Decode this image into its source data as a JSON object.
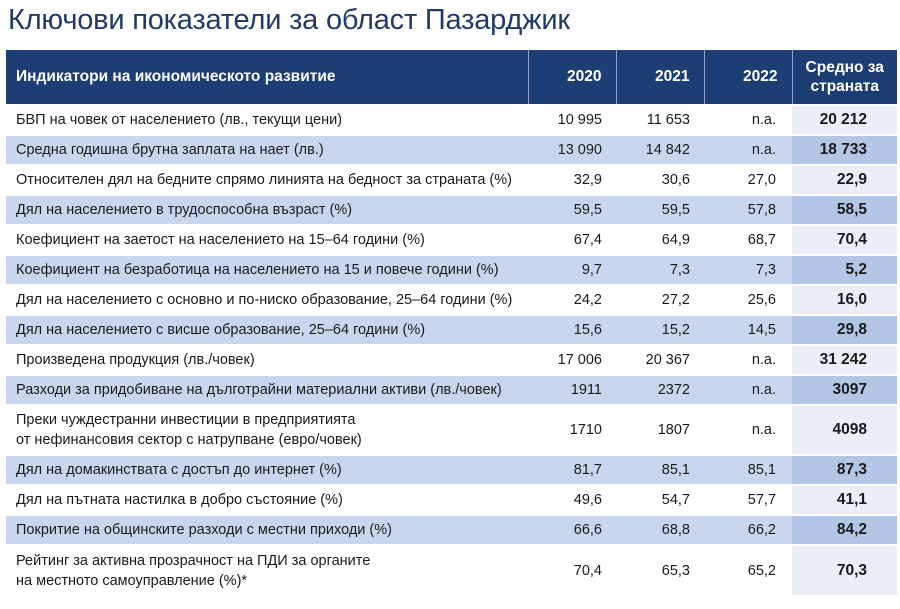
{
  "title": "Ключови показатели за област Пазарджик",
  "table": {
    "headers": [
      "Индикатори на икономическото развитие",
      "2020",
      "2021",
      "2022"
    ],
    "avg_header_line1": "Средно за",
    "avg_header_line2": "страната",
    "rows": [
      {
        "label": [
          "БВП на човек от населението (лв., текущи цени)"
        ],
        "v2020": "10 995",
        "v2021": "11 653",
        "v2022": "n.a.",
        "avg": "20 212"
      },
      {
        "label": [
          "Средна годишна брутна заплата на нает (лв.)"
        ],
        "v2020": "13 090",
        "v2021": "14 842",
        "v2022": "n.a.",
        "avg": "18 733"
      },
      {
        "label": [
          "Относителен дял на бедните спрямо линията на бедност за страната (%)"
        ],
        "v2020": "32,9",
        "v2021": "30,6",
        "v2022": "27,0",
        "avg": "22,9"
      },
      {
        "label": [
          "Дял на населението в трудоспособна възраст (%)"
        ],
        "v2020": "59,5",
        "v2021": "59,5",
        "v2022": "57,8",
        "avg": "58,5"
      },
      {
        "label": [
          "Коефициент на заетост на населението на 15–64 години (%)"
        ],
        "v2020": "67,4",
        "v2021": "64,9",
        "v2022": "68,7",
        "avg": "70,4"
      },
      {
        "label": [
          "Коефициент на безработица на населението на 15 и повече години (%)"
        ],
        "v2020": "9,7",
        "v2021": "7,3",
        "v2022": "7,3",
        "avg": "5,2"
      },
      {
        "label": [
          "Дял на населението с основно и по-ниско образование, 25–64 години (%)"
        ],
        "v2020": "24,2",
        "v2021": "27,2",
        "v2022": "25,6",
        "avg": "16,0"
      },
      {
        "label": [
          "Дял на населението с висше образование, 25–64 години (%)"
        ],
        "v2020": "15,6",
        "v2021": "15,2",
        "v2022": "14,5",
        "avg": "29,8"
      },
      {
        "label": [
          "Произведена продукция (лв./човек)"
        ],
        "v2020": "17 006",
        "v2021": "20 367",
        "v2022": "n.a.",
        "avg": "31 242"
      },
      {
        "label": [
          "Разходи за придобиване на дълготрайни материални активи (лв./човек)"
        ],
        "v2020": "1911",
        "v2021": "2372",
        "v2022": "n.a.",
        "avg": "3097"
      },
      {
        "label": [
          "Преки чуждестранни инвестиции в предприятията",
          "от нефинансовия сектор с натрупване (евро/човек)"
        ],
        "v2020": "1710",
        "v2021": "1807",
        "v2022": "n.a.",
        "avg": "4098"
      },
      {
        "label": [
          "Дял на домакинствата с достъп до интернет (%)"
        ],
        "v2020": "81,7",
        "v2021": "85,1",
        "v2022": "85,1",
        "avg": "87,3"
      },
      {
        "label": [
          "Дял на пътната настилка в добро състояние (%)"
        ],
        "v2020": "49,6",
        "v2021": "54,7",
        "v2022": "57,7",
        "avg": "41,1"
      },
      {
        "label": [
          "Покритие на общинските разходи с местни приходи (%)"
        ],
        "v2020": "66,6",
        "v2021": "68,8",
        "v2022": "66,2",
        "avg": "84,2"
      },
      {
        "label": [
          "Рейтинг за активна прозрачност на ПДИ за органите",
          "на местното самоуправление (%)*"
        ],
        "v2020": "70,4",
        "v2021": "65,3",
        "v2022": "65,2",
        "avg": "70,3"
      }
    ]
  }
}
